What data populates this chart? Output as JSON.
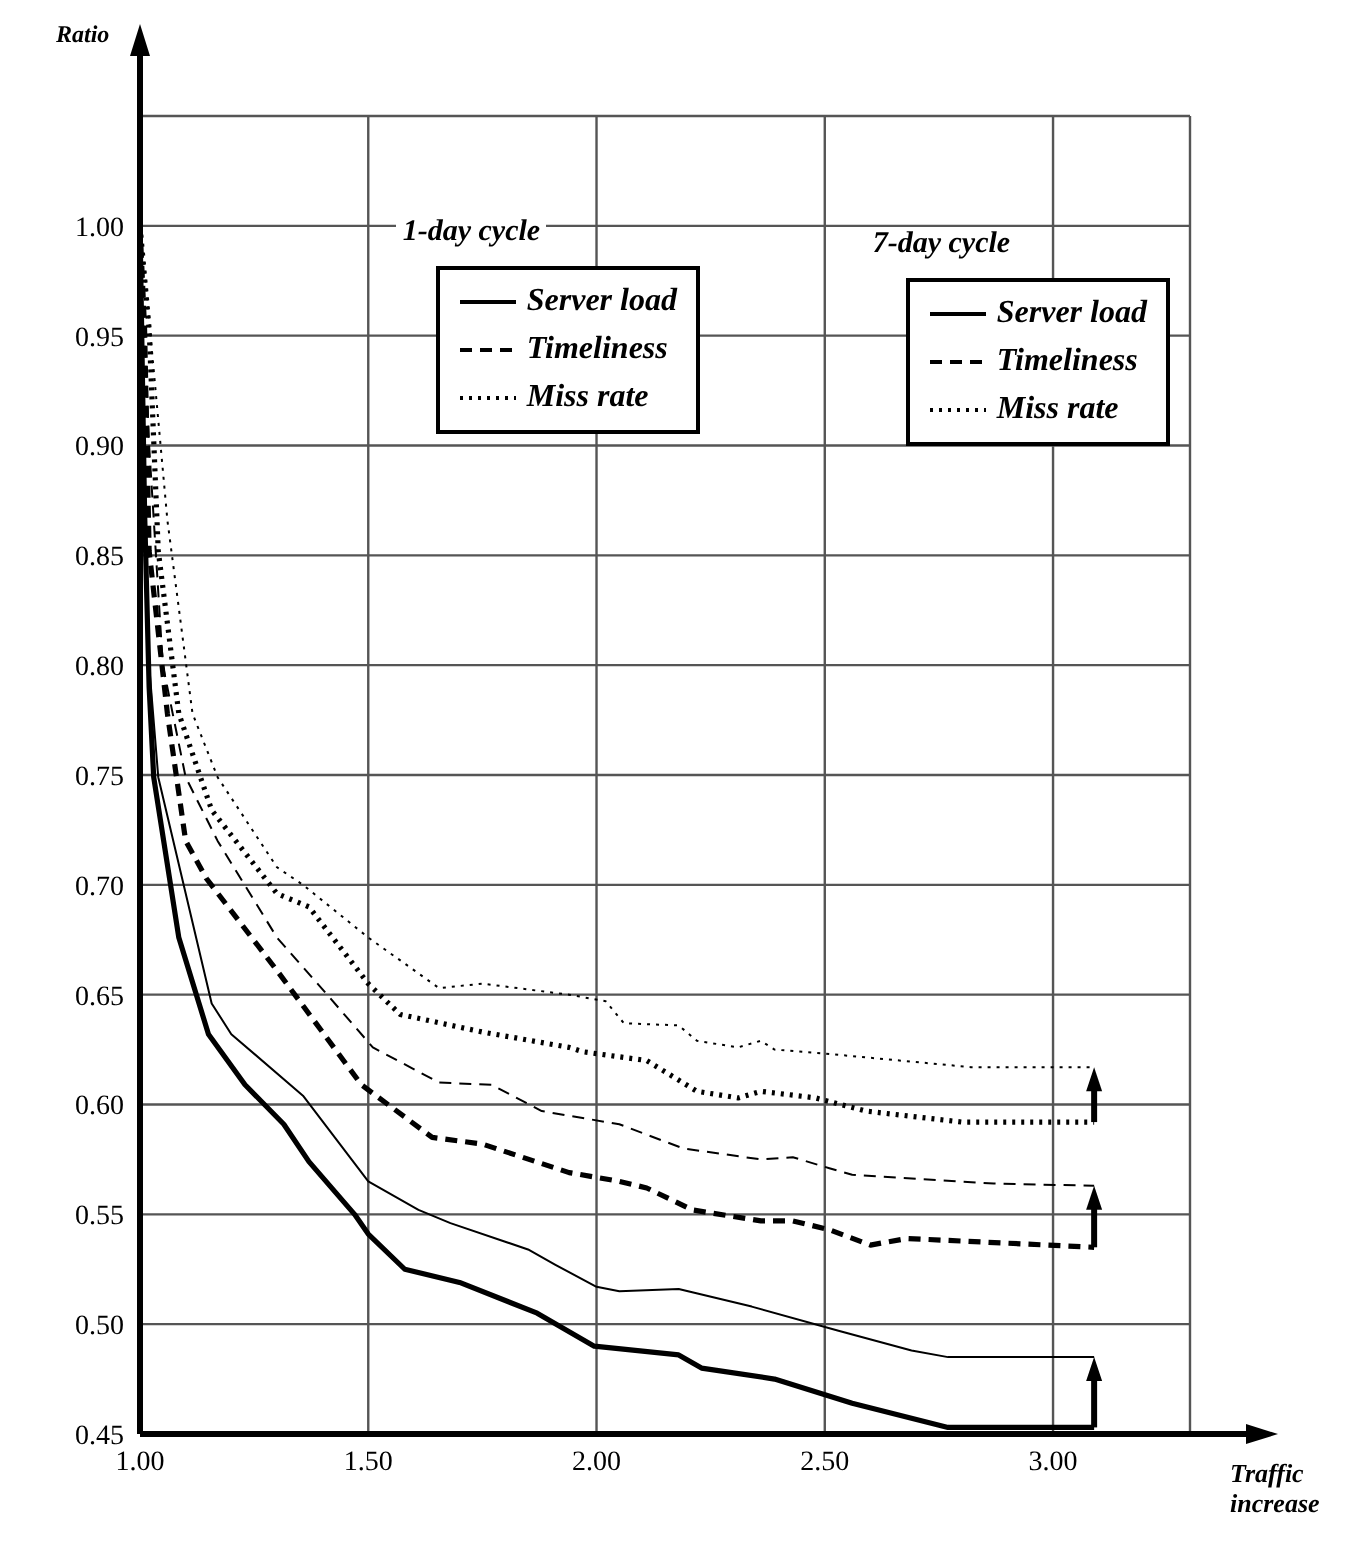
{
  "chart_data": {
    "type": "line",
    "xlabel": "Traffic increase",
    "ylabel": "Ratio",
    "annotations": [
      "1-day cycle",
      "7-day cycle"
    ],
    "xlim": [
      1,
      3.3
    ],
    "ylim": [
      0.45,
      1.05
    ],
    "xticks": [
      {
        "value": 1,
        "label": "1.00"
      },
      {
        "value": 1.5,
        "label": "1.50"
      },
      {
        "value": 2,
        "label": "2.00"
      },
      {
        "value": 2.5,
        "label": "2.50"
      },
      {
        "value": 3,
        "label": "3.00"
      }
    ],
    "yticks": [
      {
        "value": 0.45,
        "label": "0.45"
      },
      {
        "value": 0.5,
        "label": "0.50"
      },
      {
        "value": 0.55,
        "label": "0.55"
      },
      {
        "value": 0.6,
        "label": "0.60"
      },
      {
        "value": 0.65,
        "label": "0.65"
      },
      {
        "value": 0.7,
        "label": "0.70"
      },
      {
        "value": 0.75,
        "label": "0.75"
      },
      {
        "value": 0.8,
        "label": "0.80"
      },
      {
        "value": 0.85,
        "label": "0.85"
      },
      {
        "value": 0.9,
        "label": "0.90"
      },
      {
        "value": 0.95,
        "label": "0.95"
      },
      {
        "value": 1,
        "label": "1.00"
      }
    ],
    "grid": true,
    "legend": "top",
    "marker": "none",
    "series": [
      {
        "name": "Server load",
        "color": "#000000",
        "line_style": "solid",
        "x": [
          1,
          1.01,
          1.02,
          1.03,
          1.085,
          1.15,
          1.23,
          1.315,
          1.37,
          1.47,
          1.5,
          1.58,
          1.7,
          1.87,
          1.995,
          2.18,
          2.23,
          2.39,
          2.56,
          2.77,
          3.09
        ],
        "values": [
          1,
          0.87,
          0.79,
          0.749,
          0.676,
          0.632,
          0.609,
          0.591,
          0.574,
          0.55,
          0.541,
          0.525,
          0.519,
          0.505,
          0.49,
          0.486,
          0.48,
          0.475,
          0.464,
          0.453,
          0.453
        ]
      },
      {
        "name": "Timeliness",
        "color": "#000000",
        "line_style": "dashed",
        "x": [
          1,
          1.01,
          1.02,
          1.06,
          1.08,
          1.1,
          1.145,
          1.3,
          1.485,
          1.64,
          1.75,
          1.94,
          2.05,
          2.11,
          2.21,
          2.36,
          2.43,
          2.51,
          2.6,
          2.68,
          3.09
        ],
        "values": [
          1,
          0.953,
          0.852,
          0.778,
          0.749,
          0.72,
          0.703,
          0.661,
          0.609,
          0.585,
          0.582,
          0.569,
          0.565,
          0.562,
          0.552,
          0.547,
          0.547,
          0.543,
          0.536,
          0.539,
          0.535
        ]
      },
      {
        "name": "Miss rate",
        "color": "#000000",
        "line_style": "dotted",
        "x": [
          1,
          1.02,
          1.04,
          1.085,
          1.157,
          1.3,
          1.37,
          1.5,
          1.57,
          1.75,
          1.94,
          1.97,
          2.11,
          2.22,
          2.31,
          2.36,
          2.48,
          2.59,
          2.8,
          3.09
        ],
        "values": [
          1,
          0.953,
          0.852,
          0.778,
          0.734,
          0.696,
          0.69,
          0.655,
          0.641,
          0.633,
          0.626,
          0.624,
          0.62,
          0.606,
          0.603,
          0.606,
          0.603,
          0.597,
          0.592,
          0.592
        ]
      },
      {
        "name": "Server load",
        "color": "#000000",
        "line_style": "solid",
        "x": [
          1,
          1.01,
          1.02,
          1.04,
          1.157,
          1.2,
          1.357,
          1.5,
          1.61,
          1.68,
          1.85,
          1.91,
          2,
          2.05,
          2.18,
          2.34,
          2.53,
          2.69,
          2.77,
          3.09
        ],
        "values": [
          1,
          0.88,
          0.8,
          0.749,
          0.646,
          0.632,
          0.604,
          0.565,
          0.552,
          0.546,
          0.534,
          0.527,
          0.517,
          0.515,
          0.516,
          0.508,
          0.497,
          0.488,
          0.485,
          0.485
        ]
      },
      {
        "name": "Timeliness",
        "color": "#000000",
        "line_style": "dashed",
        "x": [
          1,
          1.02,
          1.05,
          1.1,
          1.17,
          1.3,
          1.41,
          1.51,
          1.655,
          1.77,
          1.88,
          2.05,
          2.19,
          2.36,
          2.43,
          2.51,
          2.56,
          2.87,
          3.09
        ],
        "values": [
          1,
          0.9,
          0.8,
          0.749,
          0.72,
          0.676,
          0.65,
          0.626,
          0.61,
          0.609,
          0.597,
          0.591,
          0.58,
          0.575,
          0.576,
          0.571,
          0.568,
          0.564,
          0.563
        ]
      },
      {
        "name": "Miss rate",
        "color": "#000000",
        "line_style": "dotted",
        "x": [
          1,
          1.01,
          1.06,
          1.115,
          1.17,
          1.3,
          1.357,
          1.5,
          1.655,
          1.75,
          1.94,
          2.02,
          2.06,
          2.18,
          2.22,
          2.31,
          2.36,
          2.39,
          2.51,
          2.82,
          3.09
        ],
        "values": [
          1,
          0.98,
          0.866,
          0.778,
          0.749,
          0.708,
          0.7,
          0.676,
          0.653,
          0.655,
          0.65,
          0.647,
          0.637,
          0.636,
          0.629,
          0.626,
          0.629,
          0.625,
          0.623,
          0.617,
          0.617
        ]
      }
    ]
  }
}
